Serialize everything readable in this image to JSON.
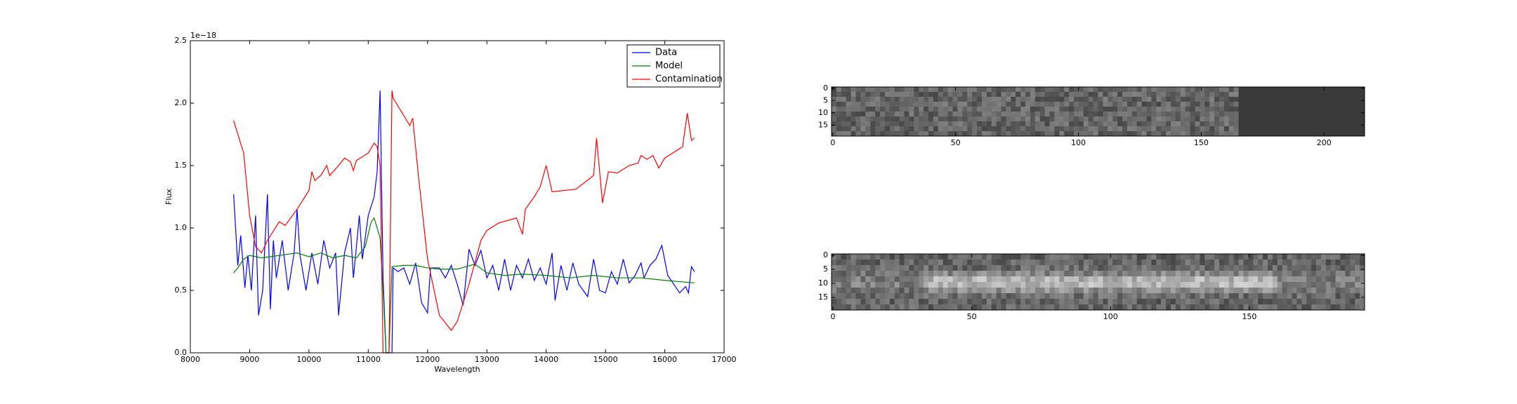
{
  "chart_data": [
    {
      "type": "line",
      "xlabel": "Wavelength",
      "ylabel": "Flux",
      "offset_text": "1e−18",
      "xlim": [
        8000,
        17000
      ],
      "xticks": [
        8000,
        9000,
        10000,
        11000,
        12000,
        13000,
        14000,
        15000,
        16000,
        17000
      ],
      "ylim": [
        0,
        2.5
      ],
      "yticks": [
        {
          "value": 0,
          "label": "0.0"
        },
        {
          "value": 0.5,
          "label": "0.5"
        },
        {
          "value": 1,
          "label": "1.0"
        },
        {
          "value": 1.5,
          "label": "1.5"
        },
        {
          "value": 2,
          "label": "2.0"
        },
        {
          "value": 2.5,
          "label": "2.5"
        }
      ],
      "legend": "upper right",
      "series": [
        {
          "name": "Data",
          "color": "#0000ff",
          "x": [
            8730,
            8800,
            8850,
            8920,
            8970,
            9030,
            9100,
            9150,
            9220,
            9300,
            9350,
            9400,
            9450,
            9550,
            9650,
            9750,
            9800,
            9850,
            9950,
            10050,
            10150,
            10250,
            10350,
            10450,
            10500,
            10600,
            10700,
            10750,
            10850,
            10900,
            11000,
            11100,
            11150,
            11200,
            11250,
            11300,
            11400,
            11420,
            11500,
            11600,
            11700,
            11800,
            11900,
            12000,
            12050,
            12200,
            12300,
            12400,
            12500,
            12600,
            12700,
            12800,
            12900,
            13000,
            13100,
            13200,
            13300,
            13400,
            13500,
            13600,
            13700,
            13800,
            13900,
            14000,
            14100,
            14150,
            14250,
            14350,
            14450,
            14550,
            14700,
            14800,
            14900,
            15000,
            15100,
            15200,
            15300,
            15400,
            15500,
            15600,
            15650,
            15750,
            15850,
            15950,
            16050,
            16150,
            16250,
            16350,
            16400,
            16450,
            16500
          ],
          "values": [
            1.27,
            0.7,
            0.94,
            0.52,
            0.78,
            0.5,
            1.1,
            0.3,
            0.5,
            1.27,
            0.35,
            0.9,
            0.6,
            0.9,
            0.5,
            0.8,
            1.15,
            0.78,
            0.5,
            0.8,
            0.55,
            0.9,
            0.68,
            0.8,
            0.3,
            0.8,
            1.0,
            0.6,
            1.1,
            0.75,
            1.1,
            1.25,
            1.45,
            2.1,
            0.6,
            0.0,
            0.0,
            0.68,
            0.65,
            0.68,
            0.55,
            0.72,
            0.4,
            0.32,
            0.68,
            0.68,
            0.6,
            0.7,
            0.55,
            0.38,
            0.83,
            0.7,
            0.82,
            0.6,
            0.7,
            0.5,
            0.75,
            0.5,
            0.7,
            0.6,
            0.75,
            0.58,
            0.68,
            0.55,
            0.8,
            0.42,
            0.7,
            0.5,
            0.72,
            0.55,
            0.45,
            0.75,
            0.5,
            0.48,
            0.65,
            0.55,
            0.75,
            0.56,
            0.62,
            0.72,
            0.6,
            0.7,
            0.75,
            0.86,
            0.62,
            0.55,
            0.48,
            0.53,
            0.48,
            0.69,
            0.65
          ]
        },
        {
          "name": "Model",
          "color": "#008000",
          "x": [
            8730,
            8800,
            8900,
            9000,
            9200,
            9500,
            9800,
            10000,
            10200,
            10400,
            10600,
            10800,
            10950,
            11050,
            11100,
            11200,
            11250,
            11300,
            11350,
            11400,
            11600,
            11800,
            12000,
            12200,
            12500,
            12800,
            13000,
            13300,
            13600,
            14000,
            14400,
            14800,
            15200,
            15600,
            16000,
            16500
          ],
          "values": [
            0.64,
            0.68,
            0.75,
            0.78,
            0.76,
            0.78,
            0.8,
            0.77,
            0.8,
            0.76,
            0.78,
            0.76,
            0.85,
            1.05,
            1.08,
            0.92,
            0.5,
            0.0,
            0.0,
            0.69,
            0.7,
            0.7,
            0.68,
            0.67,
            0.67,
            0.71,
            0.64,
            0.62,
            0.63,
            0.62,
            0.6,
            0.62,
            0.6,
            0.6,
            0.58,
            0.56
          ]
        },
        {
          "name": "Contamination",
          "color": "#ff0000",
          "x": [
            8730,
            8900,
            9000,
            9100,
            9200,
            9300,
            9500,
            9600,
            9800,
            10000,
            10050,
            10100,
            10200,
            10300,
            10350,
            10500,
            10600,
            10700,
            10750,
            10800,
            11000,
            11100,
            11150,
            11200,
            11250,
            11350,
            11400,
            11420,
            11600,
            11700,
            11750,
            11850,
            12000,
            12200,
            12400,
            12500,
            12700,
            12900,
            13000,
            13200,
            13500,
            13600,
            13650,
            13800,
            13900,
            14000,
            14100,
            14500,
            14800,
            14850,
            14950,
            15050,
            15200,
            15400,
            15550,
            15600,
            15700,
            15800,
            15900,
            16000,
            16300,
            16380,
            16450,
            16500
          ],
          "values": [
            1.86,
            1.6,
            1.1,
            0.85,
            0.8,
            0.9,
            1.05,
            1.02,
            1.15,
            1.3,
            1.45,
            1.38,
            1.42,
            1.5,
            1.42,
            1.5,
            1.56,
            1.53,
            1.46,
            1.54,
            1.6,
            1.68,
            1.65,
            1.5,
            0.0,
            0.0,
            2.1,
            2.04,
            1.9,
            1.82,
            1.88,
            1.4,
            0.75,
            0.3,
            0.18,
            0.25,
            0.55,
            0.9,
            0.98,
            1.04,
            1.08,
            0.95,
            1.15,
            1.25,
            1.33,
            1.5,
            1.29,
            1.31,
            1.42,
            1.72,
            1.2,
            1.45,
            1.44,
            1.5,
            1.52,
            1.58,
            1.55,
            1.58,
            1.48,
            1.56,
            1.65,
            1.92,
            1.7,
            1.72
          ]
        }
      ]
    },
    {
      "type": "image",
      "xlim": [
        -0.5,
        216.5
      ],
      "ylim": [
        -0.5,
        19.5
      ],
      "xticks": [
        0,
        50,
        100,
        150,
        200
      ],
      "yticks": [
        0,
        5,
        10,
        15
      ]
    },
    {
      "type": "image",
      "xlim": [
        -0.5,
        191.5
      ],
      "ylim": [
        -0.5,
        19.5
      ],
      "xticks": [
        0,
        50,
        100,
        150
      ],
      "yticks": [
        0,
        5,
        10,
        15
      ]
    }
  ]
}
